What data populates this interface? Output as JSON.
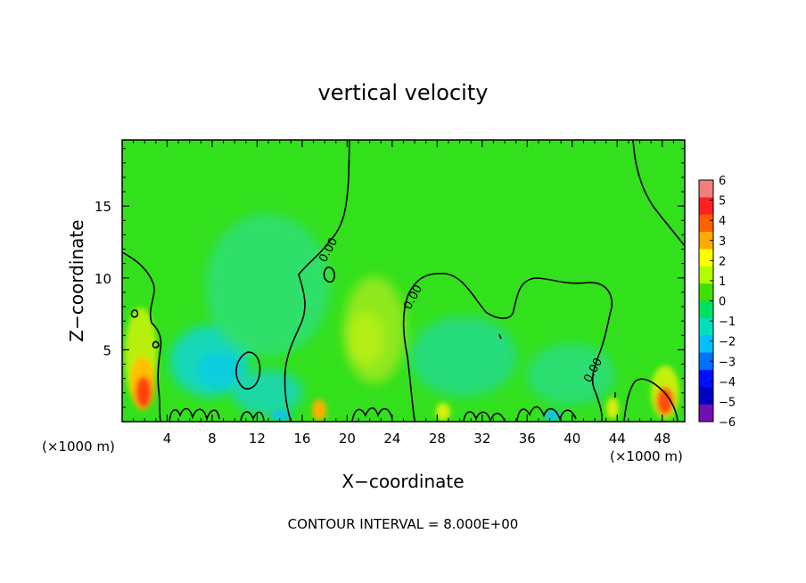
{
  "chart_data": {
    "type": "heatmap",
    "title": "vertical velocity",
    "xlabel": "X−coordinate",
    "ylabel": "Z−coordinate",
    "x_unit_label_left": "(×1000 m)",
    "x_unit_label_right": "(×1000 m)",
    "footer": "CONTOUR INTERVAL = 8.000E+00",
    "xlim": [
      0,
      50
    ],
    "ylim": [
      0,
      19.6
    ],
    "x_ticks": [
      4,
      8,
      12,
      16,
      20,
      24,
      28,
      32,
      36,
      40,
      44,
      48
    ],
    "x_tick_labels": [
      "4",
      "8",
      "12",
      "16",
      "20",
      "24",
      "28",
      "32",
      "36",
      "40",
      "44",
      "48"
    ],
    "y_ticks": [
      5,
      10,
      15
    ],
    "y_tick_labels": [
      "5",
      "10",
      "15"
    ],
    "contour_labels": [
      "0.00",
      "0.00",
      "0.00"
    ],
    "colorbar": {
      "range": [
        -6,
        6
      ],
      "ticks": [
        "6",
        "5",
        "4",
        "3",
        "2",
        "1",
        "0",
        "−1",
        "−2",
        "−3",
        "−4",
        "−5",
        "−6"
      ],
      "colors": [
        "#f08080",
        "#ff2020",
        "#ff6000",
        "#ffaa00",
        "#ffff00",
        "#b0ff00",
        "#40e000",
        "#00e060",
        "#00e0c0",
        "#00c0ff",
        "#0070ff",
        "#0010ff",
        "#0000c0",
        "#7010b0"
      ]
    }
  }
}
